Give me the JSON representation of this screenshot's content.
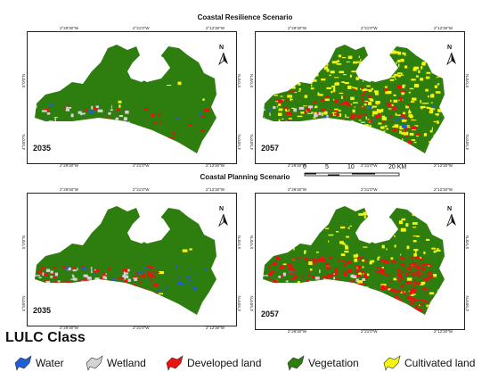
{
  "scenarios": {
    "resilience_title": "Coastal Resilience Scenario",
    "planning_title": "Coastal Planning Scenario"
  },
  "coords": {
    "top": [
      "2°29'30\"W",
      "2°21'0\"W",
      "2°12'30\"W"
    ],
    "bottom": [
      "2°29'30\"W",
      "2°21'0\"W",
      "2°12'30\"W"
    ],
    "lat_a": "5°0'0\"N",
    "lat_b": "4°50'0\"N"
  },
  "north_label": "N",
  "panels": [
    {
      "year": "2035",
      "scenario": "Coastal Resilience Scenario"
    },
    {
      "year": "2057",
      "scenario": "Coastal Resilience Scenario"
    },
    {
      "year": "2035",
      "scenario": "Coastal Planning Scenario"
    },
    {
      "year": "2057",
      "scenario": "Coastal Planning Scenario"
    }
  ],
  "scale": {
    "ticks": [
      "0",
      "5",
      "10",
      "20 KM"
    ]
  },
  "legend": {
    "title": "LULC Class",
    "items": [
      {
        "label": "Water",
        "color": "#1f5fd6"
      },
      {
        "label": "Wetland",
        "color": "#d4d4d4"
      },
      {
        "label": "Developed land",
        "color": "#ee1111"
      },
      {
        "label": "Vegetation",
        "color": "#2e7d0f"
      },
      {
        "label": "Cultivated land",
        "color": "#f5f511"
      }
    ]
  },
  "colors": {
    "vegetation": "#2e7d0f",
    "developed": "#ee1111",
    "cultivated": "#f5f511",
    "water": "#1f5fd6",
    "wetland": "#d4d4d4"
  }
}
